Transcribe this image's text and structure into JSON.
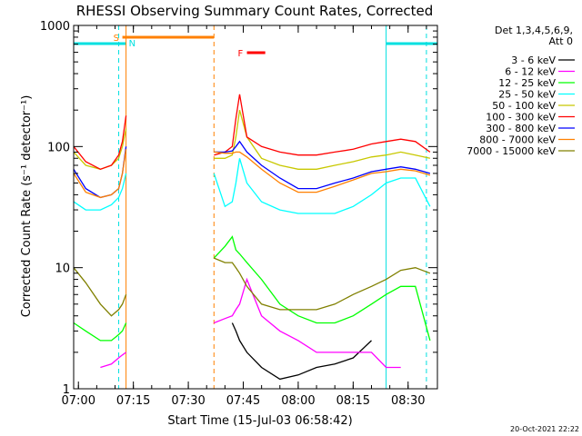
{
  "chart_data": {
    "type": "line",
    "title": "RHESSI Observing Summary Count Rates, Corrected",
    "xlabel": "Start Time (15-Jul-03 06:58:42)",
    "ylabel": "Corrected Count Rate (s⁻¹ detector⁻¹)",
    "y_scale": "log",
    "ylim": [
      1,
      1000
    ],
    "xlim": [
      "06:58:42",
      "08:38:00"
    ],
    "x_ticks": [
      "07:00",
      "07:15",
      "07:30",
      "07:45",
      "08:00",
      "08:15",
      "08:30"
    ],
    "y_ticks": [
      "1",
      "10",
      "100",
      "1000"
    ],
    "footer_date": "20-Oct-2021 22:22",
    "legend": {
      "header": [
        "Det 1,3,4,5,6,9,",
        "Att 0"
      ],
      "placement": "top-right outside"
    },
    "flags": [
      {
        "label": "S",
        "color": "#ff8000",
        "start": "07:12",
        "end": "07:37"
      },
      {
        "label": "N",
        "color": "#00e0e0",
        "start": "06:58:42",
        "end": "07:13"
      },
      {
        "label": "N",
        "color": "#00e0e0",
        "start": "08:24",
        "end": "08:38"
      },
      {
        "label": "F",
        "color": "#ff0000",
        "start": "07:46",
        "end": "07:51"
      }
    ],
    "markers": [
      {
        "time": "07:11",
        "color": "#00e0e0",
        "style": "dashed"
      },
      {
        "time": "07:13",
        "color": "#ff8000",
        "style": "solid"
      },
      {
        "time": "07:37",
        "color": "#ff8000",
        "style": "dashed"
      },
      {
        "time": "08:24",
        "color": "#00e0e0",
        "style": "solid"
      },
      {
        "time": "08:35",
        "color": "#00e0e0",
        "style": "dashed"
      }
    ],
    "segments": [
      [
        "06:58:42",
        "07:13"
      ],
      [
        "07:37",
        "08:36"
      ]
    ],
    "x": [
      "06:58:42",
      "07:02",
      "07:06",
      "07:09",
      "07:11",
      "07:12",
      "07:13",
      "07:37",
      "07:40",
      "07:42",
      "07:43",
      "07:44",
      "07:46",
      "07:50",
      "07:55",
      "08:00",
      "08:05",
      "08:10",
      "08:15",
      "08:20",
      "08:24",
      "08:28",
      "08:32",
      "08:36"
    ],
    "series": [
      {
        "name": "3 - 6 keV",
        "color": "#000000",
        "values": [
          null,
          null,
          null,
          null,
          null,
          null,
          null,
          null,
          null,
          3.5,
          3.0,
          2.5,
          2.0,
          1.5,
          1.2,
          1.3,
          1.5,
          1.6,
          1.8,
          2.5,
          null,
          null,
          null,
          null
        ]
      },
      {
        "name": "6 - 12 keV",
        "color": "#ff00ff",
        "values": [
          null,
          null,
          1.5,
          1.6,
          1.8,
          1.9,
          2.0,
          3.5,
          3.8,
          4.0,
          4.5,
          5.0,
          8.0,
          4.0,
          3.0,
          2.5,
          2.0,
          2.0,
          2.0,
          2.0,
          1.5,
          1.5,
          null,
          null
        ]
      },
      {
        "name": "12 - 25 keV",
        "color": "#00ff00",
        "values": [
          3.5,
          3.0,
          2.5,
          2.5,
          2.8,
          3.0,
          3.5,
          12,
          15,
          18,
          14,
          13,
          11,
          8.0,
          5.0,
          4.0,
          3.5,
          3.5,
          4.0,
          5.0,
          6.0,
          7.0,
          7.0,
          2.5
        ]
      },
      {
        "name": "25 - 50 keV",
        "color": "#00ffff",
        "values": [
          35,
          30,
          30,
          33,
          38,
          45,
          60,
          60,
          32,
          35,
          50,
          80,
          50,
          35,
          30,
          28,
          28,
          28,
          32,
          40,
          50,
          55,
          55,
          32
        ]
      },
      {
        "name": "50 - 100 keV",
        "color": "#c8c800",
        "values": [
          90,
          70,
          65,
          70,
          80,
          100,
          140,
          80,
          80,
          85,
          120,
          200,
          120,
          80,
          70,
          65,
          65,
          70,
          75,
          82,
          85,
          90,
          85,
          80
        ]
      },
      {
        "name": "100 - 300 keV",
        "color": "#ff0000",
        "values": [
          100,
          75,
          65,
          70,
          85,
          110,
          180,
          85,
          90,
          100,
          170,
          270,
          120,
          100,
          90,
          85,
          85,
          90,
          95,
          105,
          110,
          115,
          110,
          90
        ]
      },
      {
        "name": "300 - 800 keV",
        "color": "#0000ff",
        "values": [
          65,
          45,
          38,
          40,
          45,
          60,
          100,
          90,
          90,
          92,
          100,
          110,
          90,
          70,
          55,
          45,
          45,
          50,
          55,
          62,
          65,
          68,
          65,
          60
        ]
      },
      {
        "name": "800 - 7000 keV",
        "color": "#ff8000",
        "values": [
          60,
          42,
          38,
          40,
          45,
          60,
          95,
          90,
          88,
          88,
          90,
          90,
          82,
          65,
          50,
          42,
          42,
          47,
          53,
          60,
          62,
          65,
          63,
          58
        ]
      },
      {
        "name": "7000 - 15000 keV",
        "color": "#808000",
        "values": [
          10,
          7.5,
          5.0,
          4.0,
          4.5,
          5.0,
          6.0,
          12,
          11,
          11,
          10,
          9.0,
          7.0,
          5.0,
          4.5,
          4.5,
          4.5,
          5.0,
          6.0,
          7.0,
          8.0,
          9.5,
          10,
          9.0
        ]
      }
    ]
  }
}
